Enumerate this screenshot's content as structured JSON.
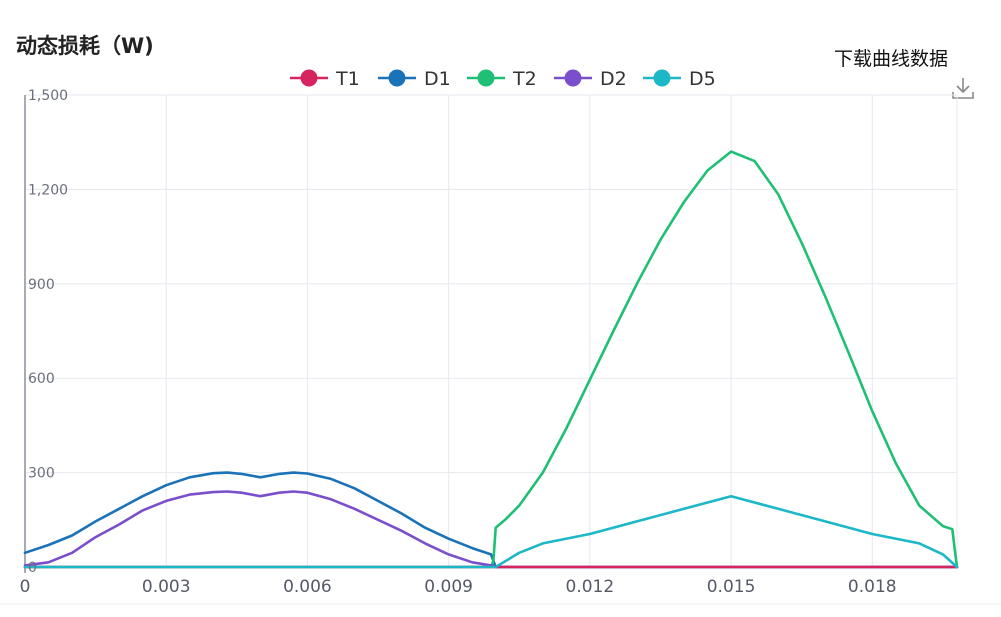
{
  "page": {
    "title": "动态损耗（W)",
    "download_label": "下载曲线数据",
    "download_icon": "download-icon"
  },
  "chart_data": {
    "type": "line",
    "title": "动态损耗（W)",
    "xlabel": "",
    "ylabel": "",
    "xlim": [
      0,
      0.0198
    ],
    "ylim": [
      0,
      1500
    ],
    "x_ticks": [
      "0",
      "0.003",
      "0.006",
      "0.009",
      "0.012",
      "0.015",
      "0.018"
    ],
    "x_tick_values": [
      0,
      0.003,
      0.006,
      0.009,
      0.012,
      0.015,
      0.018
    ],
    "y_ticks": [
      "0",
      "300",
      "600",
      "900",
      "1,200",
      "1,500"
    ],
    "y_tick_values": [
      0,
      300,
      600,
      900,
      1200,
      1500
    ],
    "grid": true,
    "legend_position": "top-center",
    "series": [
      {
        "name": "T1",
        "color": "#d6245f",
        "x": [
          0,
          0.0198
        ],
        "y": [
          0,
          0
        ]
      },
      {
        "name": "D1",
        "color": "#1a72b8",
        "x": [
          0,
          0.0005,
          0.001,
          0.0015,
          0.002,
          0.0025,
          0.003,
          0.0035,
          0.004,
          0.0043,
          0.0046,
          0.005,
          0.0054,
          0.0057,
          0.006,
          0.0065,
          0.007,
          0.0075,
          0.008,
          0.0085,
          0.009,
          0.0095,
          0.0099,
          0.01,
          0.0198
        ],
        "y": [
          45,
          70,
          100,
          145,
          185,
          225,
          260,
          285,
          298,
          300,
          296,
          285,
          296,
          300,
          297,
          280,
          250,
          210,
          170,
          125,
          90,
          60,
          40,
          0,
          0
        ]
      },
      {
        "name": "T2",
        "color": "#1fbf75",
        "x": [
          0,
          0.0099,
          0.00995,
          0.01,
          0.0102,
          0.0105,
          0.011,
          0.0115,
          0.012,
          0.0125,
          0.013,
          0.0135,
          0.014,
          0.0145,
          0.015,
          0.0155,
          0.016,
          0.0165,
          0.017,
          0.0175,
          0.018,
          0.0185,
          0.019,
          0.0195,
          0.0197,
          0.01975,
          0.0198
        ],
        "y": [
          0,
          0,
          20,
          125,
          150,
          195,
          300,
          440,
          595,
          750,
          900,
          1040,
          1160,
          1260,
          1320,
          1290,
          1185,
          1030,
          860,
          680,
          495,
          330,
          195,
          130,
          120,
          60,
          0
        ]
      },
      {
        "name": "D2",
        "color": "#7b4fcc",
        "x": [
          0,
          0.0005,
          0.001,
          0.0015,
          0.002,
          0.0025,
          0.003,
          0.0035,
          0.004,
          0.0043,
          0.0046,
          0.005,
          0.0054,
          0.0057,
          0.006,
          0.0065,
          0.007,
          0.0075,
          0.008,
          0.0085,
          0.009,
          0.0095,
          0.0099,
          0.01,
          0.0198
        ],
        "y": [
          5,
          15,
          45,
          95,
          135,
          180,
          210,
          230,
          238,
          240,
          236,
          225,
          236,
          240,
          236,
          215,
          185,
          150,
          115,
          75,
          40,
          15,
          5,
          0,
          0
        ]
      },
      {
        "name": "D5",
        "color": "#1cb8c8",
        "x": [
          0,
          0.01,
          0.0105,
          0.011,
          0.012,
          0.013,
          0.014,
          0.015,
          0.016,
          0.017,
          0.018,
          0.019,
          0.0195,
          0.0198
        ],
        "y": [
          0,
          0,
          45,
          75,
          105,
          145,
          185,
          225,
          185,
          145,
          105,
          75,
          40,
          0
        ]
      }
    ]
  }
}
